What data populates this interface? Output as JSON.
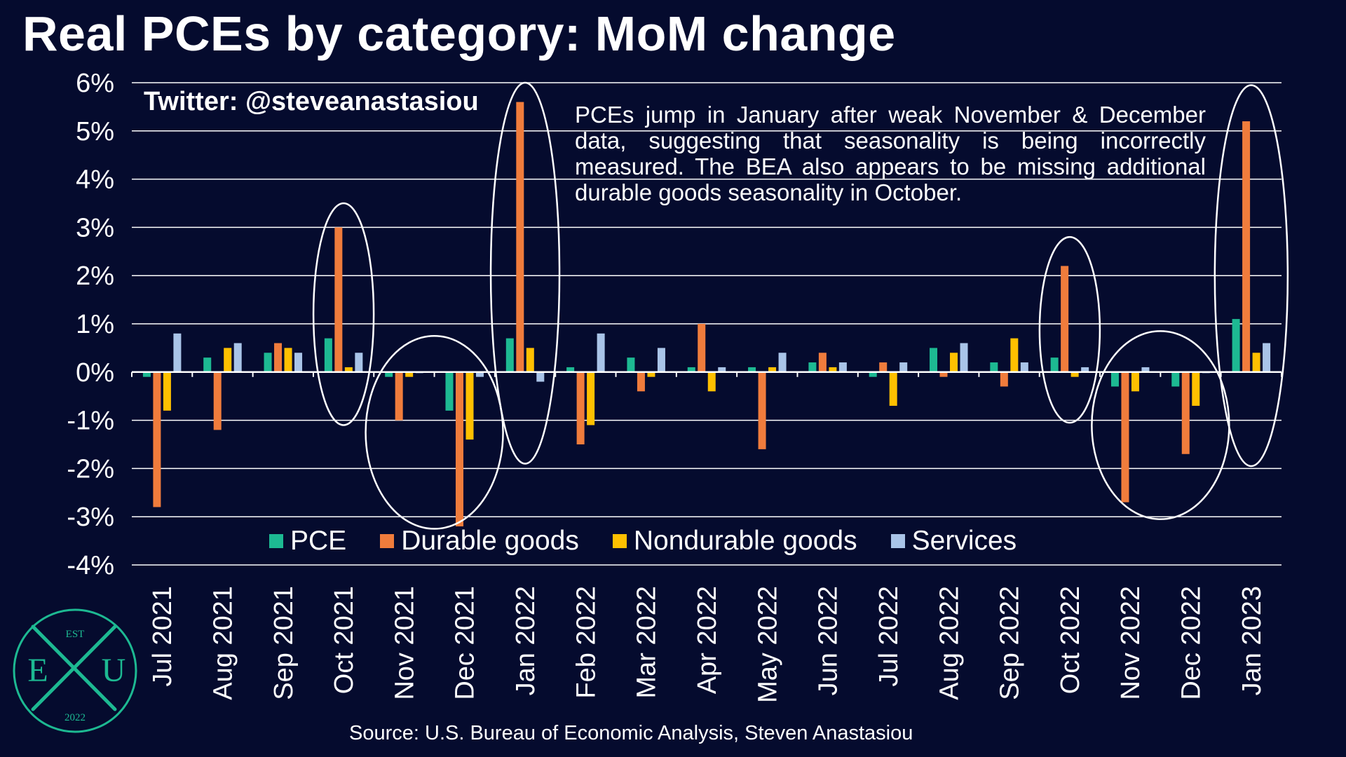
{
  "title": "Real PCEs by category: MoM change",
  "twitter": "Twitter: @steveanastasiou",
  "annotation": "PCEs jump in January after weak November & December data, suggesting that seasonality is being incorrectly measured. The BEA also appears to be missing additional durable goods seasonality in October.",
  "source": "Source: U.S. Bureau of Economic Analysis, Steven Anastasiou",
  "logo": {
    "top": "EST",
    "left": "E",
    "right": "U",
    "bottom": "2022"
  },
  "colors": {
    "background": "#050b2e",
    "grid": "#ffffff",
    "highlight": "#ffffff",
    "logo": "#1db992"
  },
  "chart_data": {
    "type": "bar",
    "title": "Real PCEs by category: MoM change",
    "categories": [
      "Jul 2021",
      "Aug 2021",
      "Sep 2021",
      "Oct 2021",
      "Nov 2021",
      "Dec 2021",
      "Jan 2022",
      "Feb 2022",
      "Mar 2022",
      "Apr 2022",
      "May 2022",
      "Jun 2022",
      "Jul 2022",
      "Aug 2022",
      "Sep 2022",
      "Oct 2022",
      "Nov 2022",
      "Dec 2022",
      "Jan 2023"
    ],
    "y_ticks": [
      "6%",
      "5%",
      "4%",
      "3%",
      "2%",
      "1%",
      "0%",
      "-1%",
      "-2%",
      "-3%",
      "-4%"
    ],
    "ylim": [
      -4,
      6
    ],
    "grid": true,
    "legend_position": "bottom",
    "series": [
      {
        "name": "PCE",
        "color": "#1db992",
        "values": [
          -0.1,
          0.3,
          0.4,
          0.7,
          -0.1,
          -0.8,
          0.7,
          0.1,
          0.3,
          0.1,
          0.1,
          0.2,
          -0.1,
          0.5,
          0.2,
          0.3,
          -0.3,
          -0.3,
          1.1
        ]
      },
      {
        "name": "Durable goods",
        "color": "#f07c3c",
        "values": [
          -2.8,
          -1.2,
          0.6,
          3.0,
          -1.0,
          -3.2,
          5.6,
          -1.5,
          -0.4,
          1.0,
          -1.6,
          0.4,
          0.2,
          -0.1,
          -0.3,
          2.2,
          -2.7,
          -1.7,
          5.2
        ]
      },
      {
        "name": "Nondurable goods",
        "color": "#ffc000",
        "values": [
          -0.8,
          0.5,
          0.5,
          0.1,
          -0.1,
          -1.4,
          0.5,
          -1.1,
          -0.1,
          -0.4,
          0.1,
          0.1,
          -0.7,
          0.4,
          0.7,
          -0.1,
          -0.4,
          -0.7,
          0.4
        ]
      },
      {
        "name": "Services",
        "color": "#a9c4e8",
        "values": [
          0.8,
          0.6,
          0.4,
          0.4,
          0.0,
          -0.1,
          -0.2,
          0.8,
          0.5,
          0.1,
          0.4,
          0.2,
          0.2,
          0.6,
          0.2,
          0.1,
          0.1,
          0.0,
          0.6
        ]
      }
    ]
  }
}
